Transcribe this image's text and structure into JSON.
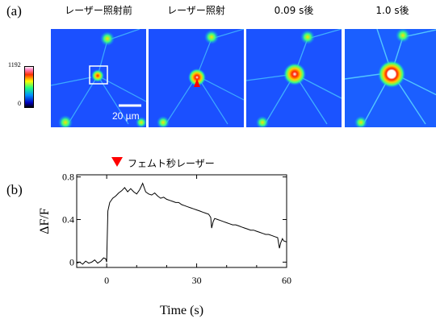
{
  "panel_a": {
    "label": "(a)",
    "images": [
      {
        "title": "レーザー照射前"
      },
      {
        "title": "レーザー照射"
      },
      {
        "title": "0.09 s後"
      },
      {
        "title": "1.0 s後"
      }
    ],
    "colorbar": {
      "max_label": "1192",
      "min_label": "0"
    },
    "scale_bar": {
      "label": "20 µm"
    },
    "colors": {
      "marker": "#ff0000",
      "roi_box": "#ffffff"
    }
  },
  "panel_b": {
    "label": "(b)",
    "laser_legend": "フェムト秒レーザー"
  },
  "chart_data": {
    "type": "line",
    "title": "",
    "xlabel": "Time (s)",
    "ylabel": "ΔF/F",
    "xlim": [
      -10,
      60
    ],
    "ylim": [
      -0.05,
      0.82
    ],
    "xticks": [
      0,
      30,
      60
    ],
    "yticks": [
      0,
      0.4,
      0.8
    ],
    "ytick_labels": [
      "0",
      "0.4",
      "0.8"
    ],
    "grid": false,
    "annotations": [
      {
        "text": "フェムト秒レーザー",
        "x": 0,
        "marker": "red-triangle-down"
      }
    ],
    "series": [
      {
        "x": [
          -10,
          -9,
          -8,
          -7,
          -6,
          -5,
          -4,
          -3,
          -2,
          -1,
          -0.3,
          0,
          0.4,
          1,
          2,
          3,
          4,
          5,
          6,
          7,
          8,
          9,
          10,
          11,
          12,
          13,
          14,
          15,
          16,
          17,
          18,
          19,
          20,
          21,
          22,
          23,
          24,
          25,
          26,
          27,
          28,
          29,
          30,
          31,
          32,
          33,
          34,
          34.7,
          35,
          35.5,
          36,
          37,
          38,
          39,
          40,
          41,
          42,
          43,
          44,
          45,
          46,
          47,
          48,
          49,
          50,
          51,
          52,
          53,
          54,
          55,
          56,
          57,
          57.6,
          58,
          58.6,
          59,
          60
        ],
        "y": [
          -0.01,
          0.0,
          -0.02,
          0.01,
          -0.01,
          0.0,
          0.02,
          -0.01,
          0.01,
          0.04,
          0.03,
          0.0,
          0.48,
          0.56,
          0.6,
          0.62,
          0.65,
          0.67,
          0.7,
          0.66,
          0.69,
          0.66,
          0.64,
          0.68,
          0.74,
          0.66,
          0.64,
          0.63,
          0.65,
          0.62,
          0.6,
          0.61,
          0.59,
          0.58,
          0.57,
          0.56,
          0.56,
          0.54,
          0.53,
          0.52,
          0.51,
          0.5,
          0.49,
          0.48,
          0.47,
          0.46,
          0.45,
          0.42,
          0.32,
          0.38,
          0.41,
          0.4,
          0.39,
          0.38,
          0.37,
          0.36,
          0.35,
          0.35,
          0.34,
          0.33,
          0.32,
          0.31,
          0.3,
          0.3,
          0.29,
          0.28,
          0.27,
          0.26,
          0.26,
          0.25,
          0.24,
          0.23,
          0.13,
          0.18,
          0.22,
          0.2,
          0.19
        ]
      }
    ]
  }
}
